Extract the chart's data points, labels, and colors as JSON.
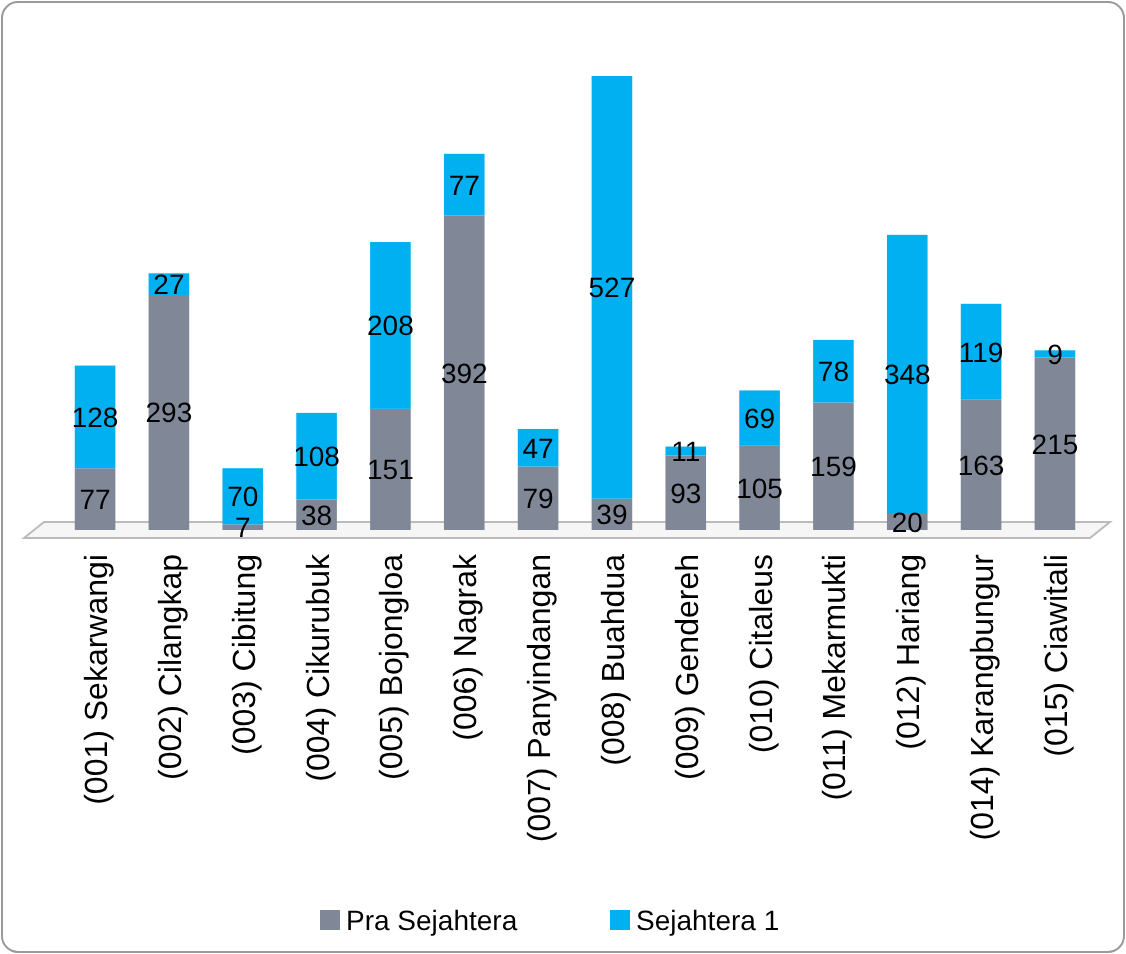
{
  "chart_data": {
    "type": "bar",
    "stacked": true,
    "data_labels": true,
    "legend": "bottom",
    "categories": [
      "(001) Sekarwangi",
      "(002) Cilangkap",
      "(003) Cibitung",
      "(004) Cikurubuk",
      "(005) Bojongloa",
      "(006) Nagrak",
      "(007) Panyindangan",
      "(008) Buahdua",
      "(009) Gendereh",
      "(010) Citaleus",
      "(011) Mekarmukti",
      "(012) Hariang",
      "(014) Karangbungur",
      "(015) Ciawitali"
    ],
    "series": [
      {
        "name": "Pra Sejahtera",
        "color": "#808898",
        "values": [
          77,
          293,
          7,
          38,
          151,
          392,
          79,
          39,
          93,
          105,
          159,
          20,
          163,
          215
        ]
      },
      {
        "name": "Sejahtera 1",
        "color": "#00b0f0",
        "values": [
          128,
          27,
          70,
          108,
          208,
          77,
          47,
          527,
          11,
          69,
          78,
          348,
          119,
          9
        ]
      }
    ]
  }
}
